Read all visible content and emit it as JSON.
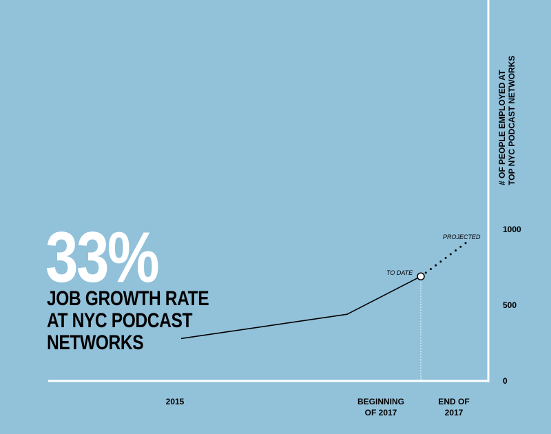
{
  "headline": {
    "value": "33%",
    "description": [
      "JOB GROWTH RATE",
      "AT NYC PODCAST",
      "NETWORKS"
    ]
  },
  "chart_data": {
    "type": "line",
    "ylabel": [
      "# OF PEOPLE EMPLOYED AT",
      "TOP NYC PODCAST NETWORKS"
    ],
    "ylim": [
      0,
      1000
    ],
    "yticks": [
      0,
      500,
      1000
    ],
    "ytick_labels": [
      "0",
      "500",
      "1000"
    ],
    "x_categories": [
      "2015",
      "BEGINNING\nOF 2017",
      "END OF\n2017"
    ],
    "series": [
      {
        "values": [
          {
            "x": "2015",
            "y": 280
          },
          {
            "x": "BEGINNING\nOF 2017",
            "y": 440
          },
          {
            "x": "TO DATE",
            "y": 690
          }
        ],
        "style": "solid",
        "color": "#000000"
      },
      {
        "values": [
          {
            "x": "TO DATE",
            "y": 690
          },
          {
            "x": "END OF\n2017",
            "y": 920
          }
        ],
        "style": "dotted",
        "color": "#000000"
      }
    ],
    "annotations": [
      {
        "text": "TO DATE",
        "at": "TO DATE"
      },
      {
        "text": "PROJECTED",
        "at": "END OF\n2017"
      }
    ],
    "grid": false
  },
  "colors": {
    "background": "#92c1da",
    "axis": "#ffffff",
    "line": "#000000",
    "headline": "#ffffff"
  }
}
